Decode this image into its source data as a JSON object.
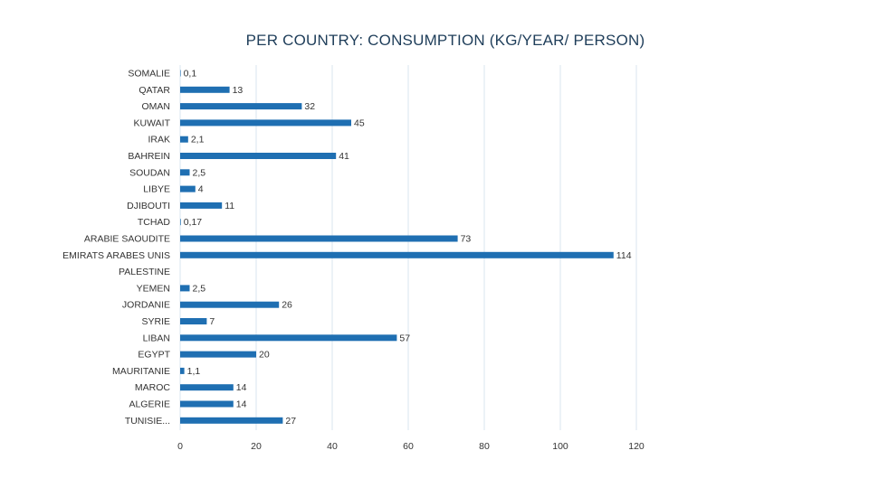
{
  "chart_data": {
    "type": "bar",
    "orientation": "horizontal",
    "title": "PER COUNTRY: CONSUMPTION (KG/YEAR/ PERSON)",
    "categories": [
      "SOMALIE",
      "QATAR",
      "OMAN",
      "KUWAIT",
      "IRAK",
      "BAHREIN",
      "SOUDAN",
      "LIBYE",
      "DJIBOUTI",
      "TCHAD",
      "ARABIE SAOUDITE",
      "EMIRATS ARABES UNIS",
      "PALESTINE",
      "YEMEN",
      "JORDANIE",
      "SYRIE",
      "LIBAN",
      "EGYPT",
      "MAURITANIE",
      "MAROC",
      "ALGERIE",
      "TUNISIE..."
    ],
    "values": [
      0.1,
      13,
      32,
      45,
      2.1,
      41,
      2.5,
      4,
      11,
      0.17,
      73,
      114,
      null,
      2.5,
      26,
      7,
      57,
      20,
      1.1,
      14,
      14,
      27
    ],
    "value_labels": [
      "0,1",
      "13",
      "32",
      "45",
      "2,1",
      "41",
      "2,5",
      "4",
      "11",
      "0,17",
      "73",
      "114",
      "",
      "2,5",
      "26",
      "7",
      "57",
      "20",
      "1,1",
      "14",
      "14",
      "27"
    ],
    "x_ticks": [
      "0",
      "20",
      "40",
      "60",
      "80",
      "100",
      "120"
    ],
    "xlim": [
      0,
      120
    ],
    "grid": true,
    "bar_color": "#1f6fb2",
    "grid_color": "#d9e4ef"
  }
}
